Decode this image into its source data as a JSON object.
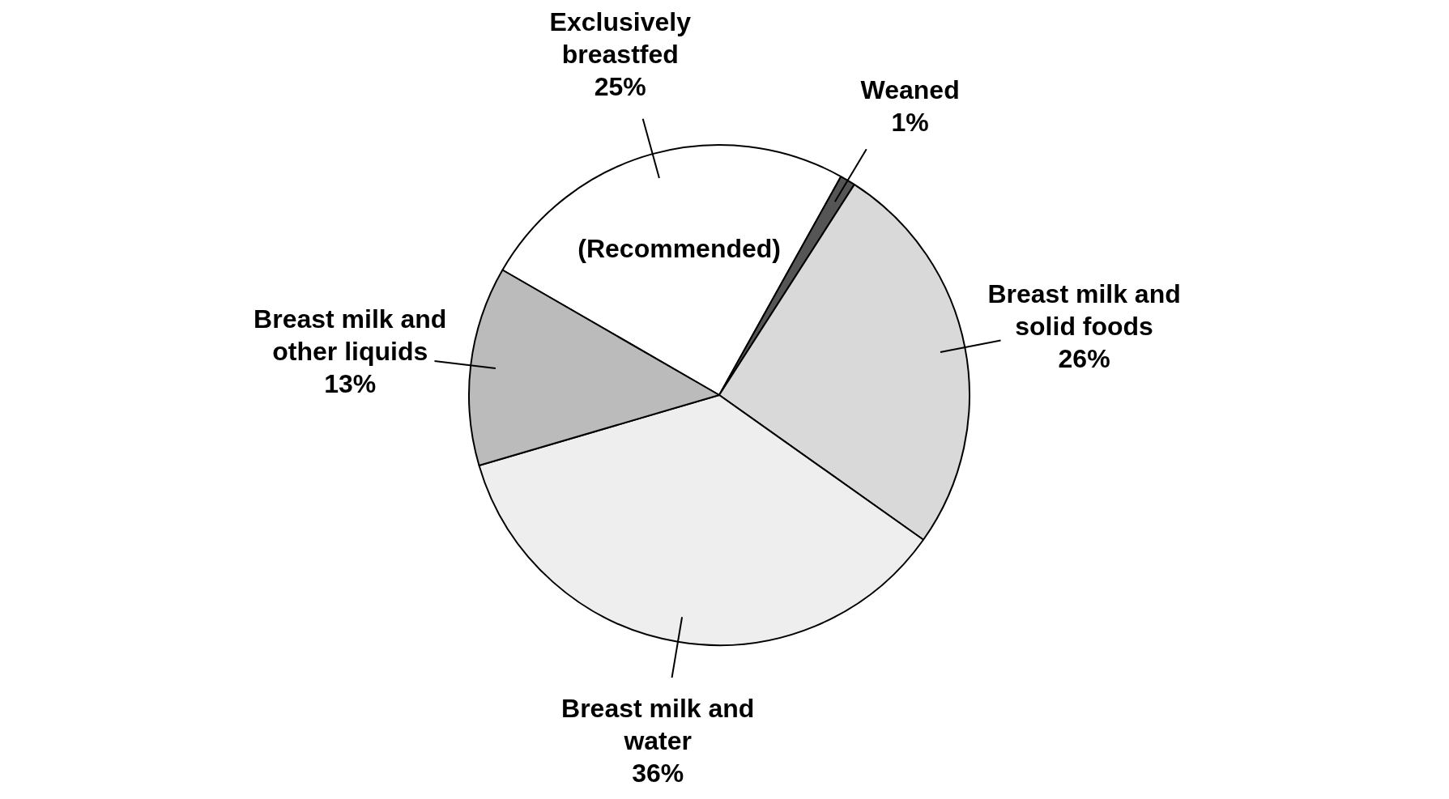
{
  "chart_data": {
    "type": "pie",
    "categories": [
      "Exclusively breastfed",
      "Weaned",
      "Breast milk and solid foods",
      "Breast milk and water",
      "Breast milk and other liquids"
    ],
    "values": [
      25,
      1,
      26,
      36,
      13
    ],
    "value_labels": [
      "25%",
      "1%",
      "26%",
      "36%",
      "13%"
    ],
    "colors": [
      "#ffffff",
      "#555555",
      "#d9d9d9",
      "#eeeeee",
      "#bbbbbb"
    ],
    "annotations": [
      "(Recommended)"
    ],
    "legend": false
  }
}
